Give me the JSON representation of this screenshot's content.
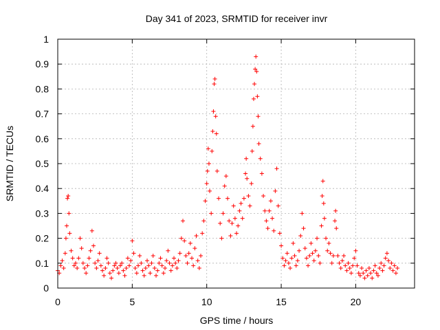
{
  "chart_data": {
    "type": "scatter",
    "title": "Day 341 of 2023, SRMTID for receiver invr",
    "xlabel": "GPS time / hours",
    "ylabel": "SRMTID / TECUs",
    "xlim": [
      0,
      23.95
    ],
    "ylim": [
      0,
      1
    ],
    "xticks": [
      {
        "value": 0,
        "label": "0"
      },
      {
        "value": 5,
        "label": "5"
      },
      {
        "value": 10,
        "label": "10"
      },
      {
        "value": 15,
        "label": "15"
      },
      {
        "value": 20,
        "label": "20"
      }
    ],
    "yticks": [
      {
        "value": 0,
        "label": "0"
      },
      {
        "value": 0.1,
        "label": "0.1"
      },
      {
        "value": 0.2,
        "label": "0.2"
      },
      {
        "value": 0.3,
        "label": "0.3"
      },
      {
        "value": 0.4,
        "label": "0.4"
      },
      {
        "value": 0.5,
        "label": "0.5"
      },
      {
        "value": 0.6,
        "label": "0.6"
      },
      {
        "value": 0.7,
        "label": "0.7"
      },
      {
        "value": 0.8,
        "label": "0.8"
      },
      {
        "value": 0.9,
        "label": "0.9"
      },
      {
        "value": 1,
        "label": "1"
      }
    ],
    "grid": true,
    "marker": "plus",
    "color": "#ff0000",
    "series": [
      {
        "name": "SRMTID",
        "points": [
          [
            0.0,
            0.07
          ],
          [
            0.1,
            0.06
          ],
          [
            0.2,
            0.09
          ],
          [
            0.3,
            0.11
          ],
          [
            0.4,
            0.08
          ],
          [
            0.5,
            0.14
          ],
          [
            0.55,
            0.2
          ],
          [
            0.6,
            0.25
          ],
          [
            0.65,
            0.36
          ],
          [
            0.7,
            0.37
          ],
          [
            0.75,
            0.3
          ],
          [
            0.8,
            0.22
          ],
          [
            0.9,
            0.15
          ],
          [
            1.0,
            0.12
          ],
          [
            1.1,
            0.09
          ],
          [
            1.2,
            0.1
          ],
          [
            1.3,
            0.08
          ],
          [
            1.4,
            0.12
          ],
          [
            1.5,
            0.2
          ],
          [
            1.6,
            0.16
          ],
          [
            1.7,
            0.1
          ],
          [
            1.8,
            0.08
          ],
          [
            1.9,
            0.06
          ],
          [
            2.0,
            0.09
          ],
          [
            2.1,
            0.12
          ],
          [
            2.2,
            0.15
          ],
          [
            2.3,
            0.23
          ],
          [
            2.4,
            0.17
          ],
          [
            2.5,
            0.1
          ],
          [
            2.6,
            0.08
          ],
          [
            2.7,
            0.11
          ],
          [
            2.8,
            0.14
          ],
          [
            2.9,
            0.09
          ],
          [
            3.0,
            0.07
          ],
          [
            3.1,
            0.05
          ],
          [
            3.2,
            0.08
          ],
          [
            3.3,
            0.12
          ],
          [
            3.4,
            0.1
          ],
          [
            3.5,
            0.06
          ],
          [
            3.6,
            0.04
          ],
          [
            3.7,
            0.07
          ],
          [
            3.8,
            0.09
          ],
          [
            3.9,
            0.1
          ],
          [
            4.0,
            0.08
          ],
          [
            4.1,
            0.06
          ],
          [
            4.2,
            0.09
          ],
          [
            4.3,
            0.1
          ],
          [
            4.4,
            0.07
          ],
          [
            4.5,
            0.05
          ],
          [
            4.6,
            0.08
          ],
          [
            4.7,
            0.12
          ],
          [
            4.8,
            0.09
          ],
          [
            4.9,
            0.11
          ],
          [
            5.0,
            0.19
          ],
          [
            5.1,
            0.14
          ],
          [
            5.2,
            0.08
          ],
          [
            5.3,
            0.06
          ],
          [
            5.4,
            0.09
          ],
          [
            5.5,
            0.13
          ],
          [
            5.6,
            0.1
          ],
          [
            5.7,
            0.07
          ],
          [
            5.8,
            0.05
          ],
          [
            5.9,
            0.08
          ],
          [
            6.0,
            0.11
          ],
          [
            6.1,
            0.09
          ],
          [
            6.2,
            0.06
          ],
          [
            6.3,
            0.1
          ],
          [
            6.4,
            0.13
          ],
          [
            6.5,
            0.08
          ],
          [
            6.6,
            0.05
          ],
          [
            6.7,
            0.07
          ],
          [
            6.8,
            0.1
          ],
          [
            6.9,
            0.12
          ],
          [
            7.0,
            0.09
          ],
          [
            7.1,
            0.06
          ],
          [
            7.2,
            0.08
          ],
          [
            7.3,
            0.11
          ],
          [
            7.4,
            0.15
          ],
          [
            7.5,
            0.1
          ],
          [
            7.6,
            0.07
          ],
          [
            7.7,
            0.09
          ],
          [
            7.8,
            0.12
          ],
          [
            7.9,
            0.1
          ],
          [
            8.0,
            0.08
          ],
          [
            8.1,
            0.11
          ],
          [
            8.2,
            0.14
          ],
          [
            8.3,
            0.2
          ],
          [
            8.4,
            0.27
          ],
          [
            8.5,
            0.19
          ],
          [
            8.6,
            0.13
          ],
          [
            8.7,
            0.1
          ],
          [
            8.8,
            0.14
          ],
          [
            8.9,
            0.18
          ],
          [
            9.0,
            0.12
          ],
          [
            9.1,
            0.09
          ],
          [
            9.2,
            0.16
          ],
          [
            9.3,
            0.21
          ],
          [
            9.4,
            0.11
          ],
          [
            9.5,
            0.08
          ],
          [
            9.6,
            0.13
          ],
          [
            9.7,
            0.22
          ],
          [
            9.8,
            0.27
          ],
          [
            9.9,
            0.35
          ],
          [
            10.0,
            0.42
          ],
          [
            10.05,
            0.47
          ],
          [
            10.1,
            0.56
          ],
          [
            10.15,
            0.5
          ],
          [
            10.2,
            0.39
          ],
          [
            10.3,
            0.3
          ],
          [
            10.35,
            0.55
          ],
          [
            10.4,
            0.63
          ],
          [
            10.45,
            0.71
          ],
          [
            10.5,
            0.82
          ],
          [
            10.55,
            0.84
          ],
          [
            10.6,
            0.69
          ],
          [
            10.65,
            0.62
          ],
          [
            10.7,
            0.47
          ],
          [
            10.8,
            0.36
          ],
          [
            10.9,
            0.26
          ],
          [
            11.0,
            0.2
          ],
          [
            11.1,
            0.3
          ],
          [
            11.2,
            0.41
          ],
          [
            11.3,
            0.45
          ],
          [
            11.4,
            0.36
          ],
          [
            11.5,
            0.27
          ],
          [
            11.6,
            0.21
          ],
          [
            11.7,
            0.26
          ],
          [
            11.8,
            0.33
          ],
          [
            11.9,
            0.28
          ],
          [
            12.0,
            0.22
          ],
          [
            12.1,
            0.25
          ],
          [
            12.2,
            0.31
          ],
          [
            12.3,
            0.34
          ],
          [
            12.4,
            0.28
          ],
          [
            12.5,
            0.36
          ],
          [
            12.6,
            0.46
          ],
          [
            12.65,
            0.52
          ],
          [
            12.7,
            0.44
          ],
          [
            12.8,
            0.37
          ],
          [
            12.9,
            0.33
          ],
          [
            13.0,
            0.42
          ],
          [
            13.05,
            0.55
          ],
          [
            13.1,
            0.65
          ],
          [
            13.15,
            0.76
          ],
          [
            13.2,
            0.82
          ],
          [
            13.25,
            0.88
          ],
          [
            13.3,
            0.93
          ],
          [
            13.35,
            0.87
          ],
          [
            13.4,
            0.77
          ],
          [
            13.45,
            0.69
          ],
          [
            13.5,
            0.58
          ],
          [
            13.6,
            0.52
          ],
          [
            13.7,
            0.46
          ],
          [
            13.8,
            0.37
          ],
          [
            13.9,
            0.31
          ],
          [
            14.0,
            0.27
          ],
          [
            14.1,
            0.24
          ],
          [
            14.2,
            0.31
          ],
          [
            14.3,
            0.35
          ],
          [
            14.4,
            0.28
          ],
          [
            14.5,
            0.23
          ],
          [
            14.6,
            0.39
          ],
          [
            14.7,
            0.48
          ],
          [
            14.8,
            0.33
          ],
          [
            14.9,
            0.22
          ],
          [
            15.0,
            0.17
          ],
          [
            15.1,
            0.12
          ],
          [
            15.2,
            0.09
          ],
          [
            15.3,
            0.11
          ],
          [
            15.4,
            0.14
          ],
          [
            15.5,
            0.1
          ],
          [
            15.6,
            0.08
          ],
          [
            15.7,
            0.12
          ],
          [
            15.8,
            0.18
          ],
          [
            15.9,
            0.13
          ],
          [
            16.0,
            0.09
          ],
          [
            16.1,
            0.11
          ],
          [
            16.2,
            0.15
          ],
          [
            16.3,
            0.21
          ],
          [
            16.4,
            0.3
          ],
          [
            16.5,
            0.24
          ],
          [
            16.6,
            0.16
          ],
          [
            16.7,
            0.12
          ],
          [
            16.8,
            0.09
          ],
          [
            16.9,
            0.13
          ],
          [
            17.0,
            0.18
          ],
          [
            17.1,
            0.14
          ],
          [
            17.2,
            0.11
          ],
          [
            17.3,
            0.15
          ],
          [
            17.4,
            0.2
          ],
          [
            17.5,
            0.13
          ],
          [
            17.6,
            0.1
          ],
          [
            17.7,
            0.25
          ],
          [
            17.75,
            0.37
          ],
          [
            17.8,
            0.43
          ],
          [
            17.85,
            0.34
          ],
          [
            17.9,
            0.28
          ],
          [
            18.0,
            0.2
          ],
          [
            18.1,
            0.15
          ],
          [
            18.2,
            0.18
          ],
          [
            18.3,
            0.14
          ],
          [
            18.4,
            0.1
          ],
          [
            18.5,
            0.13
          ],
          [
            18.6,
            0.27
          ],
          [
            18.65,
            0.31
          ],
          [
            18.7,
            0.24
          ],
          [
            18.8,
            0.13
          ],
          [
            18.9,
            0.1
          ],
          [
            19.0,
            0.08
          ],
          [
            19.1,
            0.11
          ],
          [
            19.2,
            0.13
          ],
          [
            19.3,
            0.09
          ],
          [
            19.4,
            0.07
          ],
          [
            19.5,
            0.1
          ],
          [
            19.6,
            0.08
          ],
          [
            19.7,
            0.06
          ],
          [
            19.8,
            0.09
          ],
          [
            19.9,
            0.12
          ],
          [
            20.0,
            0.15
          ],
          [
            20.1,
            0.09
          ],
          [
            20.2,
            0.06
          ],
          [
            20.3,
            0.05
          ],
          [
            20.4,
            0.08
          ],
          [
            20.5,
            0.06
          ],
          [
            20.6,
            0.04
          ],
          [
            20.7,
            0.07
          ],
          [
            20.8,
            0.05
          ],
          [
            20.9,
            0.08
          ],
          [
            21.0,
            0.06
          ],
          [
            21.1,
            0.04
          ],
          [
            21.2,
            0.07
          ],
          [
            21.3,
            0.09
          ],
          [
            21.4,
            0.06
          ],
          [
            21.5,
            0.05
          ],
          [
            21.6,
            0.08
          ],
          [
            21.7,
            0.1
          ],
          [
            21.8,
            0.07
          ],
          [
            21.9,
            0.09
          ],
          [
            22.0,
            0.12
          ],
          [
            22.1,
            0.14
          ],
          [
            22.2,
            0.11
          ],
          [
            22.3,
            0.08
          ],
          [
            22.4,
            0.1
          ],
          [
            22.5,
            0.07
          ],
          [
            22.6,
            0.09
          ],
          [
            22.7,
            0.06
          ],
          [
            22.8,
            0.08
          ]
        ]
      }
    ]
  }
}
